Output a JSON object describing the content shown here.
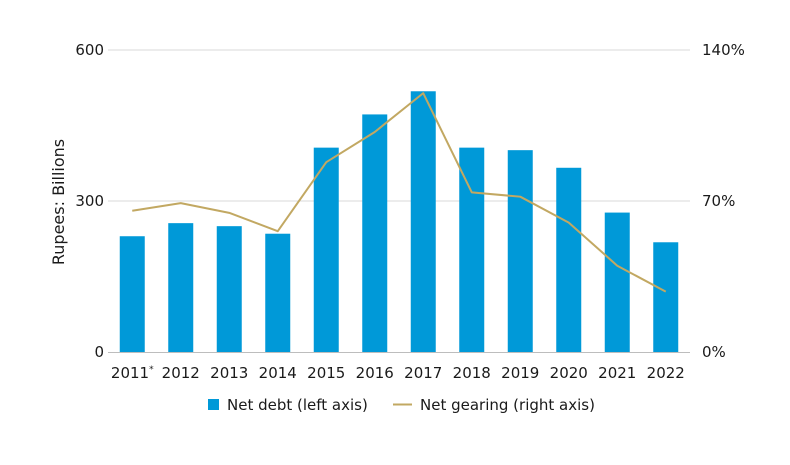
{
  "chart_data": {
    "type": "bar",
    "categories": [
      "2011*",
      "2012",
      "2013",
      "2014",
      "2015",
      "2016",
      "2017",
      "2018",
      "2019",
      "2020",
      "2021",
      "2022"
    ],
    "series": [
      {
        "name": "Net debt (left axis)",
        "type": "bar",
        "axis": "left",
        "values": [
          230,
          256,
          250,
          235,
          406,
          472,
          518,
          406,
          401,
          366,
          277,
          218
        ]
      },
      {
        "name": "Net gearing (right axis)",
        "type": "line",
        "axis": "right",
        "values": [
          65.5,
          69,
          64.5,
          56,
          88,
          102,
          120,
          74,
          72,
          60,
          40,
          28
        ]
      }
    ],
    "ylabel": "Rupees: Billions",
    "ylim": [
      0,
      600
    ],
    "yticks": [
      0,
      300,
      600
    ],
    "ytick_labels": [
      "0",
      "300",
      "600"
    ],
    "y2lim": [
      0,
      140
    ],
    "y2ticks": [
      0,
      70,
      140
    ],
    "y2tick_labels": [
      "0%",
      "70%",
      "140%"
    ],
    "grid": true,
    "legend_position": "bottom-center",
    "colors": {
      "bar": "#0099d8",
      "line": "#c2a862",
      "grid": "#d9d9d9"
    }
  }
}
